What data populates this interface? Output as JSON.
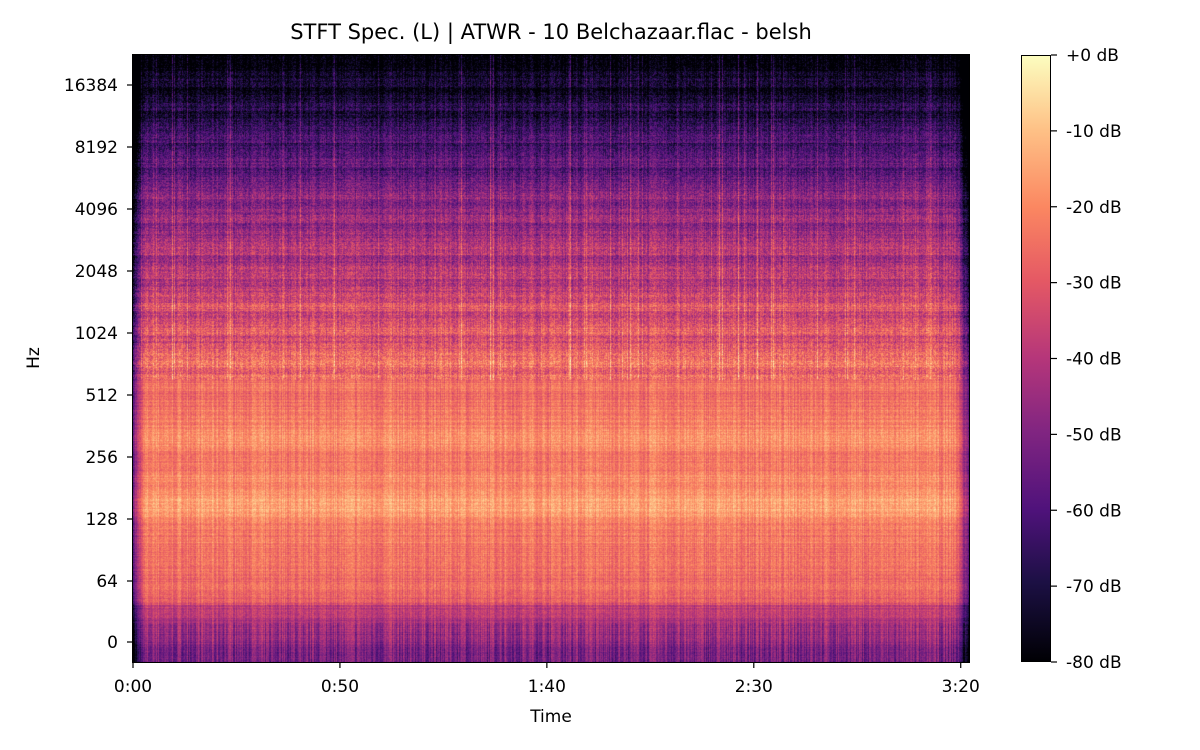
{
  "chart_data": {
    "type": "heatmap",
    "title": "STFT Spec. (L) | ATWR - 10 Belchazaar.flac - belsh",
    "xlabel": "Time",
    "ylabel": "Hz",
    "x_ticks": [
      "0:00",
      "0:50",
      "1:40",
      "2:30",
      "3:20"
    ],
    "x_tick_seconds": [
      0,
      50,
      100,
      150,
      200
    ],
    "xlim_seconds": [
      0,
      202
    ],
    "y_scale": "symlog",
    "y_ticks": [
      0,
      64,
      128,
      256,
      512,
      1024,
      2048,
      4096,
      8192,
      16384
    ],
    "ylim_hz": [
      0,
      22050
    ],
    "colormap": "magma",
    "colorbar": {
      "ticks": [
        "+0 dB",
        "-10 dB",
        "-20 dB",
        "-30 dB",
        "-40 dB",
        "-50 dB",
        "-60 dB",
        "-70 dB",
        "-80 dB"
      ],
      "range_db": [
        -80,
        0
      ]
    },
    "approx_band_levels_db": [
      {
        "hz": 0,
        "db": -45
      },
      {
        "hz": 64,
        "db": -28
      },
      {
        "hz": 128,
        "db": -17
      },
      {
        "hz": 256,
        "db": -21
      },
      {
        "hz": 512,
        "db": -24
      },
      {
        "hz": 1024,
        "db": -31
      },
      {
        "hz": 2048,
        "db": -40
      },
      {
        "hz": 4096,
        "db": -48
      },
      {
        "hz": 8192,
        "db": -62
      },
      {
        "hz": 16384,
        "db": -76
      },
      {
        "hz": 22050,
        "db": -79
      }
    ]
  }
}
